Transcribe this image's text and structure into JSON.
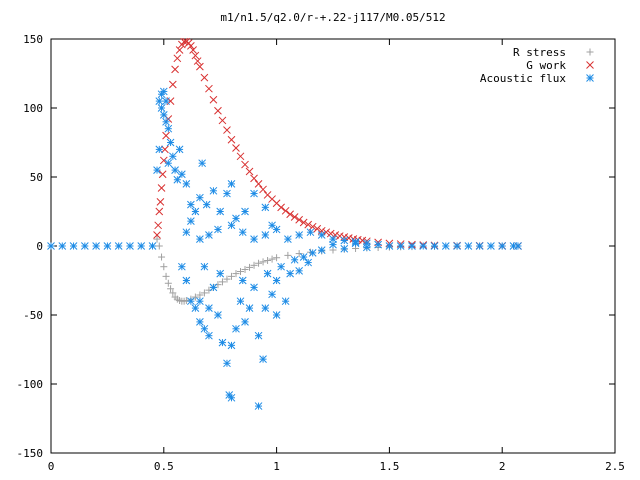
{
  "chart_data": {
    "type": "scatter",
    "title": "m1/n1.5/q2.0/r-+.22-j117/M0.05/512",
    "xlabel": "",
    "ylabel": "",
    "xlim": [
      0,
      2.5
    ],
    "ylim": [
      -150,
      150
    ],
    "x_ticks": [
      "0",
      "0.5",
      "1",
      "1.5",
      "2",
      "2.5"
    ],
    "y_ticks": [
      "-150",
      "-100",
      "-50",
      "0",
      "50",
      "100",
      "150"
    ],
    "grid": false,
    "legend_position": "top-right",
    "series": [
      {
        "name": "R stress",
        "marker": "plus",
        "color": "#a0a0a0",
        "points": [
          [
            0.47,
            5
          ],
          [
            0.48,
            0
          ],
          [
            0.49,
            -8
          ],
          [
            0.5,
            -15
          ],
          [
            0.51,
            -22
          ],
          [
            0.52,
            -27
          ],
          [
            0.53,
            -31
          ],
          [
            0.54,
            -34
          ],
          [
            0.55,
            -37
          ],
          [
            0.56,
            -38.5
          ],
          [
            0.57,
            -39.5
          ],
          [
            0.58,
            -40
          ],
          [
            0.59,
            -40
          ],
          [
            0.6,
            -39.5
          ],
          [
            0.62,
            -38.5
          ],
          [
            0.64,
            -37
          ],
          [
            0.66,
            -35.5
          ],
          [
            0.68,
            -34
          ],
          [
            0.7,
            -32
          ],
          [
            0.72,
            -30
          ],
          [
            0.74,
            -28
          ],
          [
            0.76,
            -26
          ],
          [
            0.78,
            -24
          ],
          [
            0.8,
            -22
          ],
          [
            0.82,
            -20
          ],
          [
            0.84,
            -18.5
          ],
          [
            0.86,
            -17
          ],
          [
            0.88,
            -15.5
          ],
          [
            0.9,
            -14
          ],
          [
            0.92,
            -12.5
          ],
          [
            0.94,
            -11.5
          ],
          [
            0.96,
            -10.5
          ],
          [
            0.98,
            -9.5
          ],
          [
            1.0,
            -8.5
          ],
          [
            1.05,
            -6.8
          ],
          [
            1.1,
            -5.5
          ],
          [
            1.15,
            -4.5
          ],
          [
            1.2,
            -3.6
          ],
          [
            1.25,
            -2.9
          ],
          [
            1.3,
            -2.3
          ],
          [
            1.35,
            -1.8
          ],
          [
            1.4,
            -1.4
          ],
          [
            1.45,
            -1.1
          ],
          [
            1.5,
            -0.8
          ],
          [
            1.55,
            -0.6
          ],
          [
            1.6,
            -0.45
          ],
          [
            1.7,
            -0.3
          ],
          [
            1.8,
            -0.2
          ],
          [
            1.9,
            -0.1
          ],
          [
            2.0,
            -0.05
          ],
          [
            2.05,
            0
          ]
        ]
      },
      {
        "name": "G work",
        "marker": "cross",
        "color": "#d83030",
        "points": [
          [
            0.47,
            8
          ],
          [
            0.475,
            15
          ],
          [
            0.48,
            25
          ],
          [
            0.485,
            32
          ],
          [
            0.49,
            42
          ],
          [
            0.495,
            52
          ],
          [
            0.5,
            62
          ],
          [
            0.505,
            70
          ],
          [
            0.51,
            80
          ],
          [
            0.52,
            92
          ],
          [
            0.53,
            105
          ],
          [
            0.54,
            117
          ],
          [
            0.55,
            128
          ],
          [
            0.56,
            136
          ],
          [
            0.57,
            142
          ],
          [
            0.58,
            146
          ],
          [
            0.59,
            148
          ],
          [
            0.6,
            148
          ],
          [
            0.61,
            147
          ],
          [
            0.62,
            145
          ],
          [
            0.63,
            142
          ],
          [
            0.64,
            138
          ],
          [
            0.65,
            134
          ],
          [
            0.66,
            130
          ],
          [
            0.68,
            122
          ],
          [
            0.7,
            114
          ],
          [
            0.72,
            106
          ],
          [
            0.74,
            98
          ],
          [
            0.76,
            91
          ],
          [
            0.78,
            84
          ],
          [
            0.8,
            77
          ],
          [
            0.82,
            71
          ],
          [
            0.84,
            65
          ],
          [
            0.86,
            59
          ],
          [
            0.88,
            54
          ],
          [
            0.9,
            49
          ],
          [
            0.92,
            45
          ],
          [
            0.94,
            41
          ],
          [
            0.96,
            37
          ],
          [
            0.98,
            34
          ],
          [
            1.0,
            31
          ],
          [
            1.02,
            28
          ],
          [
            1.04,
            25.5
          ],
          [
            1.06,
            23
          ],
          [
            1.08,
            21
          ],
          [
            1.1,
            19
          ],
          [
            1.12,
            17
          ],
          [
            1.14,
            15.5
          ],
          [
            1.16,
            14
          ],
          [
            1.18,
            12.5
          ],
          [
            1.2,
            11
          ],
          [
            1.22,
            10
          ],
          [
            1.24,
            9
          ],
          [
            1.26,
            8
          ],
          [
            1.28,
            7.2
          ],
          [
            1.3,
            6.5
          ],
          [
            1.32,
            5.8
          ],
          [
            1.34,
            5.1
          ],
          [
            1.36,
            4.5
          ],
          [
            1.38,
            4
          ],
          [
            1.4,
            3.5
          ],
          [
            1.45,
            2.6
          ],
          [
            1.5,
            1.9
          ],
          [
            1.55,
            1.4
          ],
          [
            1.6,
            1
          ],
          [
            1.65,
            0.7
          ],
          [
            1.7,
            0.5
          ],
          [
            1.8,
            0.3
          ],
          [
            1.9,
            0.2
          ],
          [
            2.0,
            0.1
          ],
          [
            2.07,
            0
          ]
        ]
      },
      {
        "name": "Acoustic flux",
        "marker": "star",
        "color": "#1e8ce6",
        "points": [
          [
            0.0,
            0
          ],
          [
            0.05,
            0
          ],
          [
            0.1,
            0
          ],
          [
            0.15,
            0
          ],
          [
            0.2,
            0
          ],
          [
            0.25,
            0
          ],
          [
            0.3,
            0
          ],
          [
            0.35,
            0
          ],
          [
            0.4,
            0
          ],
          [
            0.45,
            0
          ],
          [
            0.47,
            55
          ],
          [
            0.48,
            70
          ],
          [
            0.48,
            105
          ],
          [
            0.49,
            110
          ],
          [
            0.49,
            100
          ],
          [
            0.5,
            112
          ],
          [
            0.5,
            95
          ],
          [
            0.51,
            105
          ],
          [
            0.51,
            90
          ],
          [
            0.52,
            85
          ],
          [
            0.52,
            60
          ],
          [
            0.53,
            75
          ],
          [
            0.54,
            65
          ],
          [
            0.55,
            55
          ],
          [
            0.56,
            48
          ],
          [
            0.57,
            70
          ],
          [
            0.58,
            52
          ],
          [
            0.6,
            45
          ],
          [
            0.62,
            30
          ],
          [
            0.64,
            25
          ],
          [
            0.66,
            35
          ],
          [
            0.67,
            60
          ],
          [
            0.69,
            30
          ],
          [
            0.72,
            40
          ],
          [
            0.75,
            25
          ],
          [
            0.78,
            38
          ],
          [
            0.8,
            45
          ],
          [
            0.82,
            20
          ],
          [
            0.86,
            25
          ],
          [
            0.9,
            38
          ],
          [
            0.95,
            28
          ],
          [
            0.98,
            15
          ],
          [
            0.6,
            10
          ],
          [
            0.62,
            18
          ],
          [
            0.66,
            5
          ],
          [
            0.7,
            8
          ],
          [
            0.74,
            12
          ],
          [
            0.8,
            15
          ],
          [
            0.85,
            10
          ],
          [
            0.9,
            5
          ],
          [
            0.95,
            8
          ],
          [
            1.0,
            12
          ],
          [
            1.05,
            5
          ],
          [
            1.1,
            8
          ],
          [
            1.15,
            10
          ],
          [
            1.2,
            8
          ],
          [
            1.25,
            5
          ],
          [
            1.3,
            4
          ],
          [
            1.35,
            3
          ],
          [
            1.4,
            2
          ],
          [
            0.58,
            -15
          ],
          [
            0.6,
            -25
          ],
          [
            0.62,
            -40
          ],
          [
            0.64,
            -45
          ],
          [
            0.66,
            -55
          ],
          [
            0.68,
            -60
          ],
          [
            0.7,
            -45
          ],
          [
            0.72,
            -30
          ],
          [
            0.74,
            -50
          ],
          [
            0.76,
            -70
          ],
          [
            0.78,
            -85
          ],
          [
            0.8,
            -72
          ],
          [
            0.82,
            -60
          ],
          [
            0.84,
            -40
          ],
          [
            0.86,
            -55
          ],
          [
            0.88,
            -45
          ],
          [
            0.9,
            -30
          ],
          [
            0.92,
            -65
          ],
          [
            0.94,
            -82
          ],
          [
            0.96,
            -20
          ],
          [
            0.98,
            -35
          ],
          [
            1.0,
            -25
          ],
          [
            1.02,
            -15
          ],
          [
            1.04,
            -40
          ],
          [
            1.06,
            -20
          ],
          [
            1.08,
            -10
          ],
          [
            1.1,
            -18
          ],
          [
            1.12,
            -8
          ],
          [
            1.14,
            -12
          ],
          [
            1.16,
            -5
          ],
          [
            0.79,
            -108
          ],
          [
            0.8,
            -110
          ],
          [
            0.92,
            -116
          ],
          [
            0.7,
            -65
          ],
          [
            0.66,
            -40
          ],
          [
            0.68,
            -15
          ],
          [
            0.75,
            -20
          ],
          [
            0.85,
            -25
          ],
          [
            0.95,
            -45
          ],
          [
            1.0,
            -50
          ],
          [
            1.2,
            -3
          ],
          [
            1.25,
            1
          ],
          [
            1.3,
            -2
          ],
          [
            1.35,
            2
          ],
          [
            1.4,
            -1
          ],
          [
            1.45,
            1
          ],
          [
            1.5,
            0
          ],
          [
            1.55,
            0
          ],
          [
            1.6,
            0
          ],
          [
            1.65,
            0
          ],
          [
            1.7,
            0
          ],
          [
            1.75,
            0
          ],
          [
            1.8,
            0
          ],
          [
            1.85,
            0
          ],
          [
            1.9,
            0
          ],
          [
            1.95,
            0
          ],
          [
            2.0,
            0
          ],
          [
            2.05,
            0
          ],
          [
            2.07,
            0
          ]
        ]
      }
    ]
  }
}
